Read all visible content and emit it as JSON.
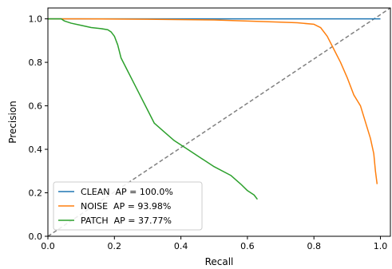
{
  "chart_data": {
    "type": "line",
    "title": "",
    "xlabel": "Recall",
    "ylabel": "Precision",
    "xlim": [
      0.0,
      1.03
    ],
    "ylim": [
      0.0,
      1.05
    ],
    "x_ticks": [
      "0.0",
      "0.2",
      "0.4",
      "0.6",
      "0.8",
      "1.0"
    ],
    "y_ticks": [
      "0.0",
      "0.2",
      "0.4",
      "0.6",
      "0.8",
      "1.0"
    ],
    "grid": false,
    "legend_position": "lower-left",
    "legend": [
      "CLEAN  AP = 100.0%",
      "NOISE  AP = 93.98%",
      "PATCH  AP = 37.77%"
    ],
    "series": [
      {
        "name": "CLEAN  AP = 100.0%",
        "color": "#1f77b4",
        "x": [
          0.0,
          1.0
        ],
        "y": [
          1.0,
          1.0
        ]
      },
      {
        "name": "NOISE  AP = 93.98%",
        "color": "#ff7f0e",
        "x": [
          0.0,
          0.1,
          0.3,
          0.5,
          0.6,
          0.7,
          0.75,
          0.8,
          0.82,
          0.84,
          0.86,
          0.88,
          0.9,
          0.92,
          0.94,
          0.95,
          0.96,
          0.97,
          0.98,
          0.985,
          0.99
        ],
        "y": [
          1.0,
          1.0,
          0.998,
          0.995,
          0.99,
          0.985,
          0.982,
          0.975,
          0.96,
          0.92,
          0.86,
          0.8,
          0.73,
          0.65,
          0.6,
          0.55,
          0.5,
          0.45,
          0.38,
          0.3,
          0.24
        ]
      },
      {
        "name": "PATCH  AP = 37.77%",
        "color": "#2ca02c",
        "x": [
          0.0,
          0.04,
          0.05,
          0.07,
          0.1,
          0.13,
          0.16,
          0.18,
          0.19,
          0.2,
          0.21,
          0.22,
          0.24,
          0.26,
          0.28,
          0.3,
          0.32,
          0.35,
          0.38,
          0.42,
          0.46,
          0.5,
          0.55,
          0.58,
          0.6,
          0.62,
          0.63
        ],
        "y": [
          1.0,
          1.0,
          0.99,
          0.98,
          0.97,
          0.96,
          0.955,
          0.95,
          0.94,
          0.92,
          0.88,
          0.82,
          0.76,
          0.7,
          0.64,
          0.58,
          0.52,
          0.48,
          0.44,
          0.4,
          0.36,
          0.32,
          0.28,
          0.24,
          0.21,
          0.19,
          0.17
        ]
      }
    ],
    "reference_line": {
      "style": "dashed",
      "color": "#808080",
      "x": [
        0.0,
        1.03
      ],
      "y": [
        0.0,
        1.05
      ]
    }
  }
}
